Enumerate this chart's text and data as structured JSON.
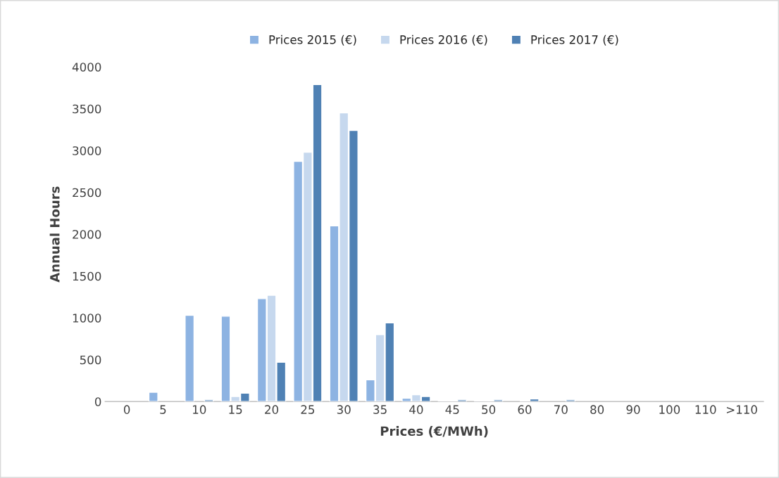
{
  "chart_data": {
    "type": "bar",
    "xlabel": "Prices (€/MWh)",
    "ylabel": "Annual Hours",
    "categories": [
      "0",
      "5",
      "10",
      "15",
      "20",
      "25",
      "30",
      "35",
      "40",
      "45",
      "50",
      "60",
      "70",
      "80",
      "90",
      "100",
      "110",
      ">110"
    ],
    "series": [
      {
        "name": "Prices 2015 (€)",
        "color": "#8db3e2",
        "values": [
          null,
          110,
          1030,
          1020,
          1230,
          2870,
          2100,
          260,
          40,
          10,
          10,
          null,
          null,
          null,
          null,
          null,
          null,
          null
        ]
      },
      {
        "name": "Prices 2016 (€)",
        "color": "#c6d8ee",
        "values": [
          null,
          null,
          null,
          60,
          1270,
          2980,
          3450,
          800,
          80,
          10,
          10,
          10,
          null,
          null,
          null,
          null,
          null,
          null
        ]
      },
      {
        "name": "Prices 2017 (€)",
        "color": "#4f81b4",
        "values": [
          null,
          null,
          20,
          100,
          470,
          3790,
          3240,
          940,
          60,
          20,
          20,
          30,
          20,
          null,
          null,
          null,
          null,
          null
        ]
      }
    ],
    "ylim": [
      0,
      4000
    ],
    "yticks": [
      0,
      500,
      1000,
      1500,
      2000,
      2500,
      3000,
      3500,
      4000
    ],
    "grid": false,
    "legend": "top"
  }
}
